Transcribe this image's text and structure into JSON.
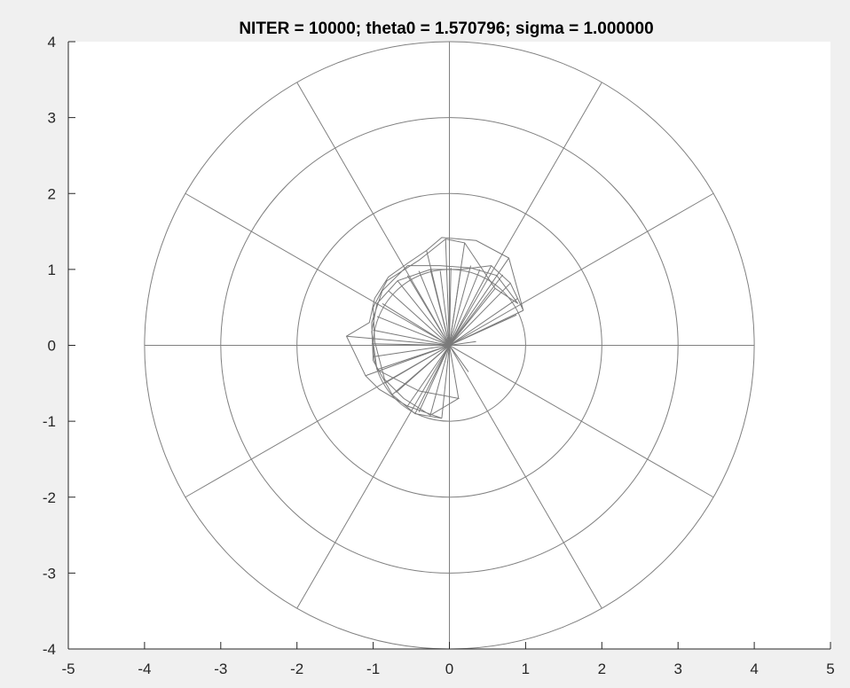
{
  "chart_data": {
    "type": "line",
    "title": "NITER = 10000; theta0 = 1.570796; sigma = 1.000000",
    "xlabel": "",
    "ylabel": "",
    "xlim": [
      -5,
      5
    ],
    "ylim": [
      -4,
      4
    ],
    "x_ticks": [
      -5,
      -4,
      -3,
      -2,
      -1,
      0,
      1,
      2,
      3,
      4,
      5
    ],
    "y_ticks": [
      -4,
      -3,
      -2,
      -1,
      0,
      1,
      2,
      3,
      4
    ],
    "polar_grid": {
      "radii": [
        1,
        2,
        3,
        4
      ],
      "spoke_angles_deg": [
        0,
        30,
        60,
        90,
        120,
        150,
        180,
        210,
        240,
        270,
        300,
        330
      ]
    },
    "series": [
      {
        "type": "spokes",
        "comment": "radial lines from origin to each sampled point",
        "points": [
          [
            0.97,
            0.46
          ],
          [
            0.9,
            0.62
          ],
          [
            0.8,
            0.82
          ],
          [
            0.7,
            0.93
          ],
          [
            0.55,
            1.05
          ],
          [
            0.4,
            1.0
          ],
          [
            0.28,
            1.05
          ],
          [
            0.15,
            1.0
          ],
          [
            0.02,
            1.02
          ],
          [
            -0.12,
            0.98
          ],
          [
            -0.25,
            1.0
          ],
          [
            -0.4,
            0.98
          ],
          [
            -0.55,
            0.92
          ],
          [
            -0.68,
            0.85
          ],
          [
            -0.8,
            0.72
          ],
          [
            -0.88,
            0.55
          ],
          [
            -0.95,
            0.38
          ],
          [
            -1.0,
            0.2
          ],
          [
            -1.02,
            0.02
          ],
          [
            -1.0,
            -0.15
          ],
          [
            -0.95,
            -0.32
          ],
          [
            -0.85,
            -0.5
          ],
          [
            -0.7,
            -0.62
          ],
          [
            -0.55,
            -0.8
          ],
          [
            -0.4,
            -0.88
          ],
          [
            -0.25,
            -0.92
          ],
          [
            -0.1,
            -0.96
          ],
          [
            0.12,
            -0.7
          ],
          [
            0.25,
            -0.35
          ],
          [
            0.35,
            0.05
          ],
          [
            0.6,
            0.75
          ],
          [
            -0.3,
            1.25
          ],
          [
            0.2,
            1.35
          ],
          [
            0.78,
            1.15
          ],
          [
            -1.35,
            0.12
          ],
          [
            -0.75,
            -0.65
          ],
          [
            -0.45,
            -0.9
          ],
          [
            0.88,
            0.4
          ],
          [
            -0.05,
            1.4
          ],
          [
            -1.1,
            -0.4
          ]
        ]
      },
      {
        "type": "path",
        "comment": "sequence of sampled points connected in order",
        "points": [
          [
            0.97,
            0.46
          ],
          [
            0.78,
            1.15
          ],
          [
            0.35,
            1.38
          ],
          [
            -0.1,
            1.42
          ],
          [
            -0.3,
            1.25
          ],
          [
            -0.55,
            1.08
          ],
          [
            -0.8,
            0.9
          ],
          [
            -0.98,
            0.62
          ],
          [
            -1.05,
            0.3
          ],
          [
            -1.35,
            0.12
          ],
          [
            -1.1,
            -0.4
          ],
          [
            -0.92,
            -0.58
          ],
          [
            -0.55,
            -0.8
          ],
          [
            -0.1,
            -0.96
          ],
          [
            -0.45,
            -0.9
          ],
          [
            -0.75,
            -0.65
          ],
          [
            -1.0,
            -0.2
          ],
          [
            -1.02,
            0.3
          ],
          [
            -0.88,
            0.72
          ],
          [
            -0.55,
            1.05
          ],
          [
            -0.12,
            1.05
          ],
          [
            0.28,
            1.02
          ],
          [
            0.62,
            0.92
          ],
          [
            0.9,
            0.55
          ],
          [
            0.6,
            0.75
          ],
          [
            0.2,
            1.35
          ],
          [
            -0.05,
            1.4
          ],
          [
            -0.4,
            1.12
          ],
          [
            -0.82,
            0.85
          ],
          [
            -1.0,
            0.5
          ],
          [
            -0.98,
            0.05
          ],
          [
            -0.85,
            -0.45
          ],
          [
            -0.6,
            -0.7
          ],
          [
            -0.25,
            -0.92
          ],
          [
            0.12,
            -0.7
          ],
          [
            -0.4,
            -0.6
          ],
          [
            -0.95,
            -0.32
          ],
          [
            -1.02,
            0.18
          ],
          [
            -0.95,
            0.55
          ],
          [
            -0.68,
            0.85
          ],
          [
            -0.25,
            1.0
          ],
          [
            0.15,
            1.0
          ],
          [
            0.55,
            1.05
          ],
          [
            0.8,
            0.82
          ],
          [
            0.97,
            0.46
          ]
        ]
      }
    ]
  }
}
